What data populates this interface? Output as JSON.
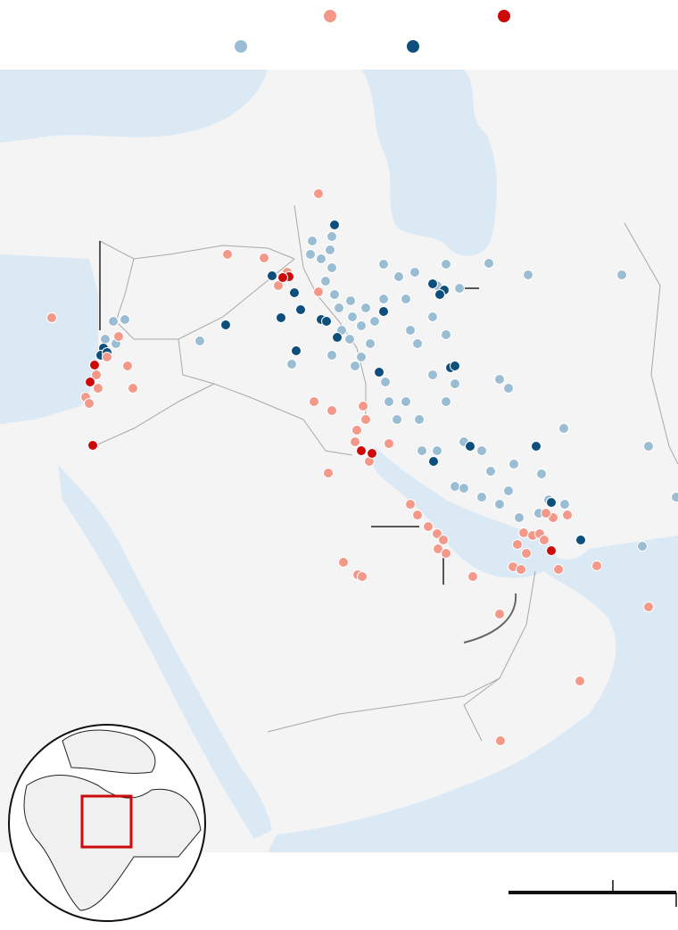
{
  "legend": {
    "items": [
      {
        "color": "#f4998a"
      },
      {
        "color": "#cc0a0a"
      },
      {
        "color": "#9bbdd3"
      },
      {
        "color": "#0d4f7c"
      }
    ]
  }
}
